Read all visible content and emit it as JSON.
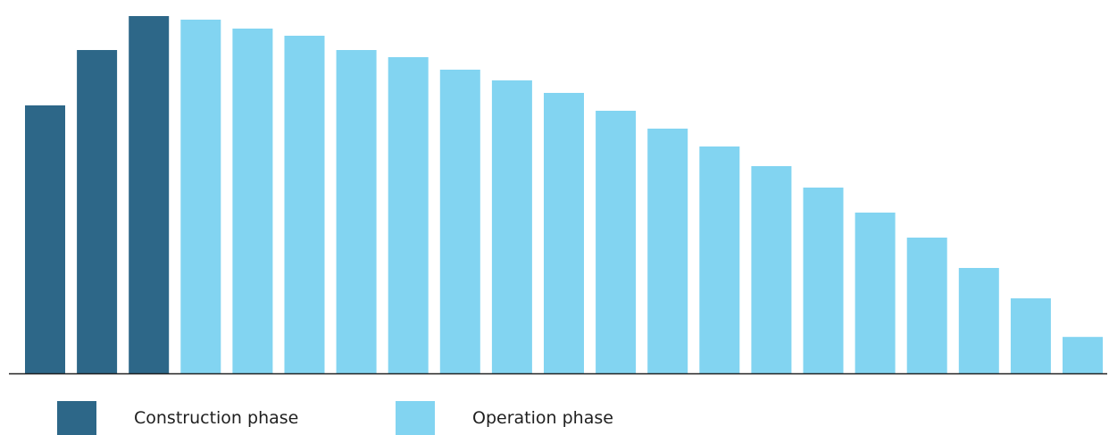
{
  "colors": {
    "construction": "#2d6788",
    "operation": "#82d4f1",
    "axis": "#222222"
  },
  "chart_data": {
    "type": "bar",
    "title": "",
    "xlabel": "",
    "ylabel": "",
    "ylim": [
      0,
      100
    ],
    "grid": false,
    "legend_position": "bottom",
    "series": [
      {
        "name": "Construction phase",
        "color_key": "construction",
        "start_index": 0,
        "values": [
          75,
          90.5,
          100
        ]
      },
      {
        "name": "Operation phase",
        "color_key": "operation",
        "start_index": 3,
        "values": [
          99,
          96.5,
          94.5,
          90.5,
          88.5,
          85,
          82,
          78.5,
          73.5,
          68.5,
          63.5,
          58,
          52,
          45,
          38,
          29.5,
          21,
          10.2
        ]
      }
    ]
  },
  "legend": {
    "construction_label": "Construction phase",
    "operation_label": "Operation phase"
  }
}
